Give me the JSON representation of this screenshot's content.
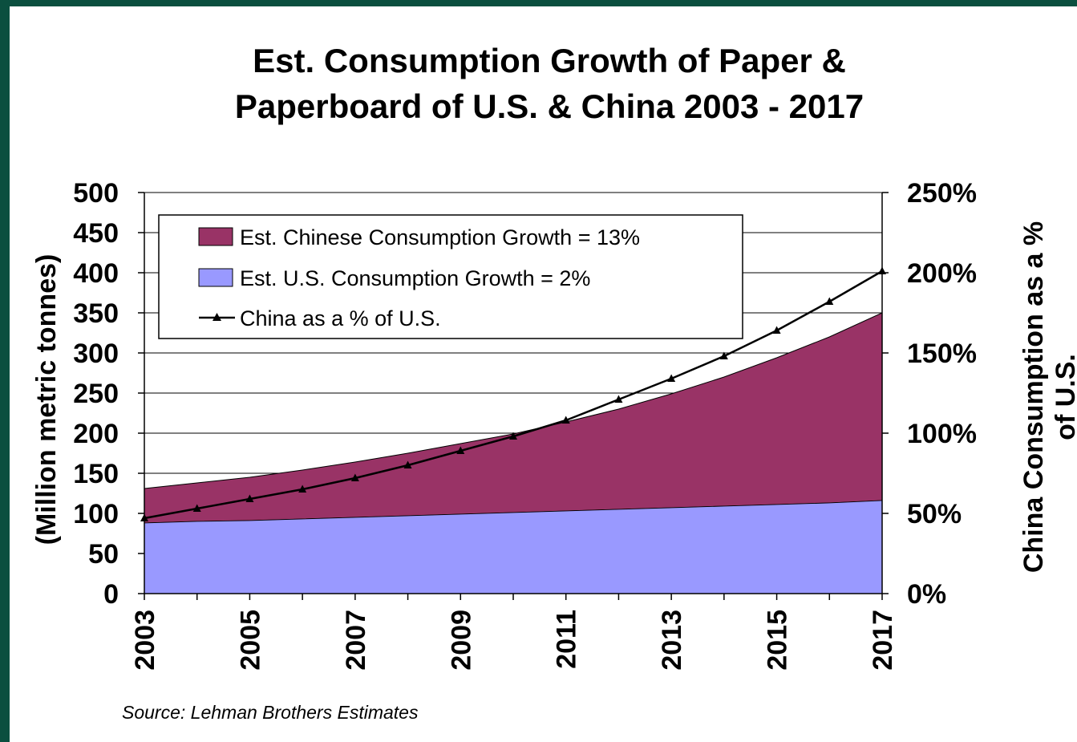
{
  "chart_data": {
    "type": "area",
    "title_lines": [
      "Est. Consumption Growth of Paper &",
      "Paperboard of U.S. & China 2003 - 2017"
    ],
    "ylabel": "(Million metric tonnes)",
    "y2label_lines": [
      "China Consumption as a %",
      "of U.S."
    ],
    "x": [
      2003,
      2004,
      2005,
      2006,
      2007,
      2008,
      2009,
      2010,
      2011,
      2012,
      2013,
      2014,
      2015,
      2016,
      2017
    ],
    "x_tick_labels": [
      "2003",
      "2005",
      "2007",
      "2009",
      "2011",
      "2013",
      "2015",
      "2017"
    ],
    "ylim": [
      0,
      500
    ],
    "y_ticks": [
      "0",
      "50",
      "100",
      "150",
      "200",
      "250",
      "300",
      "350",
      "400",
      "450",
      "500"
    ],
    "y2lim": [
      0,
      250
    ],
    "y2_ticks": [
      "0%",
      "50%",
      "100%",
      "150%",
      "200%",
      "250%"
    ],
    "grid": true,
    "legend_position": "top-left",
    "series": [
      {
        "name": "Est. U.S. Consumption Growth = 2%",
        "kind": "area",
        "axis": "left",
        "color": "#9999ff",
        "values": [
          88,
          90,
          91,
          93,
          95,
          97,
          99,
          101,
          103,
          105,
          107,
          109,
          111,
          113,
          116
        ]
      },
      {
        "name": "Est. Chinese Consumption Growth = 13%",
        "kind": "area-stacked-top",
        "axis": "left",
        "color": "#993366",
        "values": [
          131,
          138,
          145,
          154,
          164,
          175,
          187,
          199,
          214,
          230,
          249,
          270,
          294,
          320,
          350
        ]
      },
      {
        "name": "China as a % of U.S.",
        "kind": "line",
        "axis": "right",
        "color": "#000000",
        "marker": "triangle",
        "values": [
          47,
          53,
          59,
          65,
          72,
          80,
          89,
          98,
          108,
          121,
          134,
          148,
          164,
          182,
          201
        ]
      }
    ],
    "source": "Source: Lehman Brothers Estimates"
  }
}
